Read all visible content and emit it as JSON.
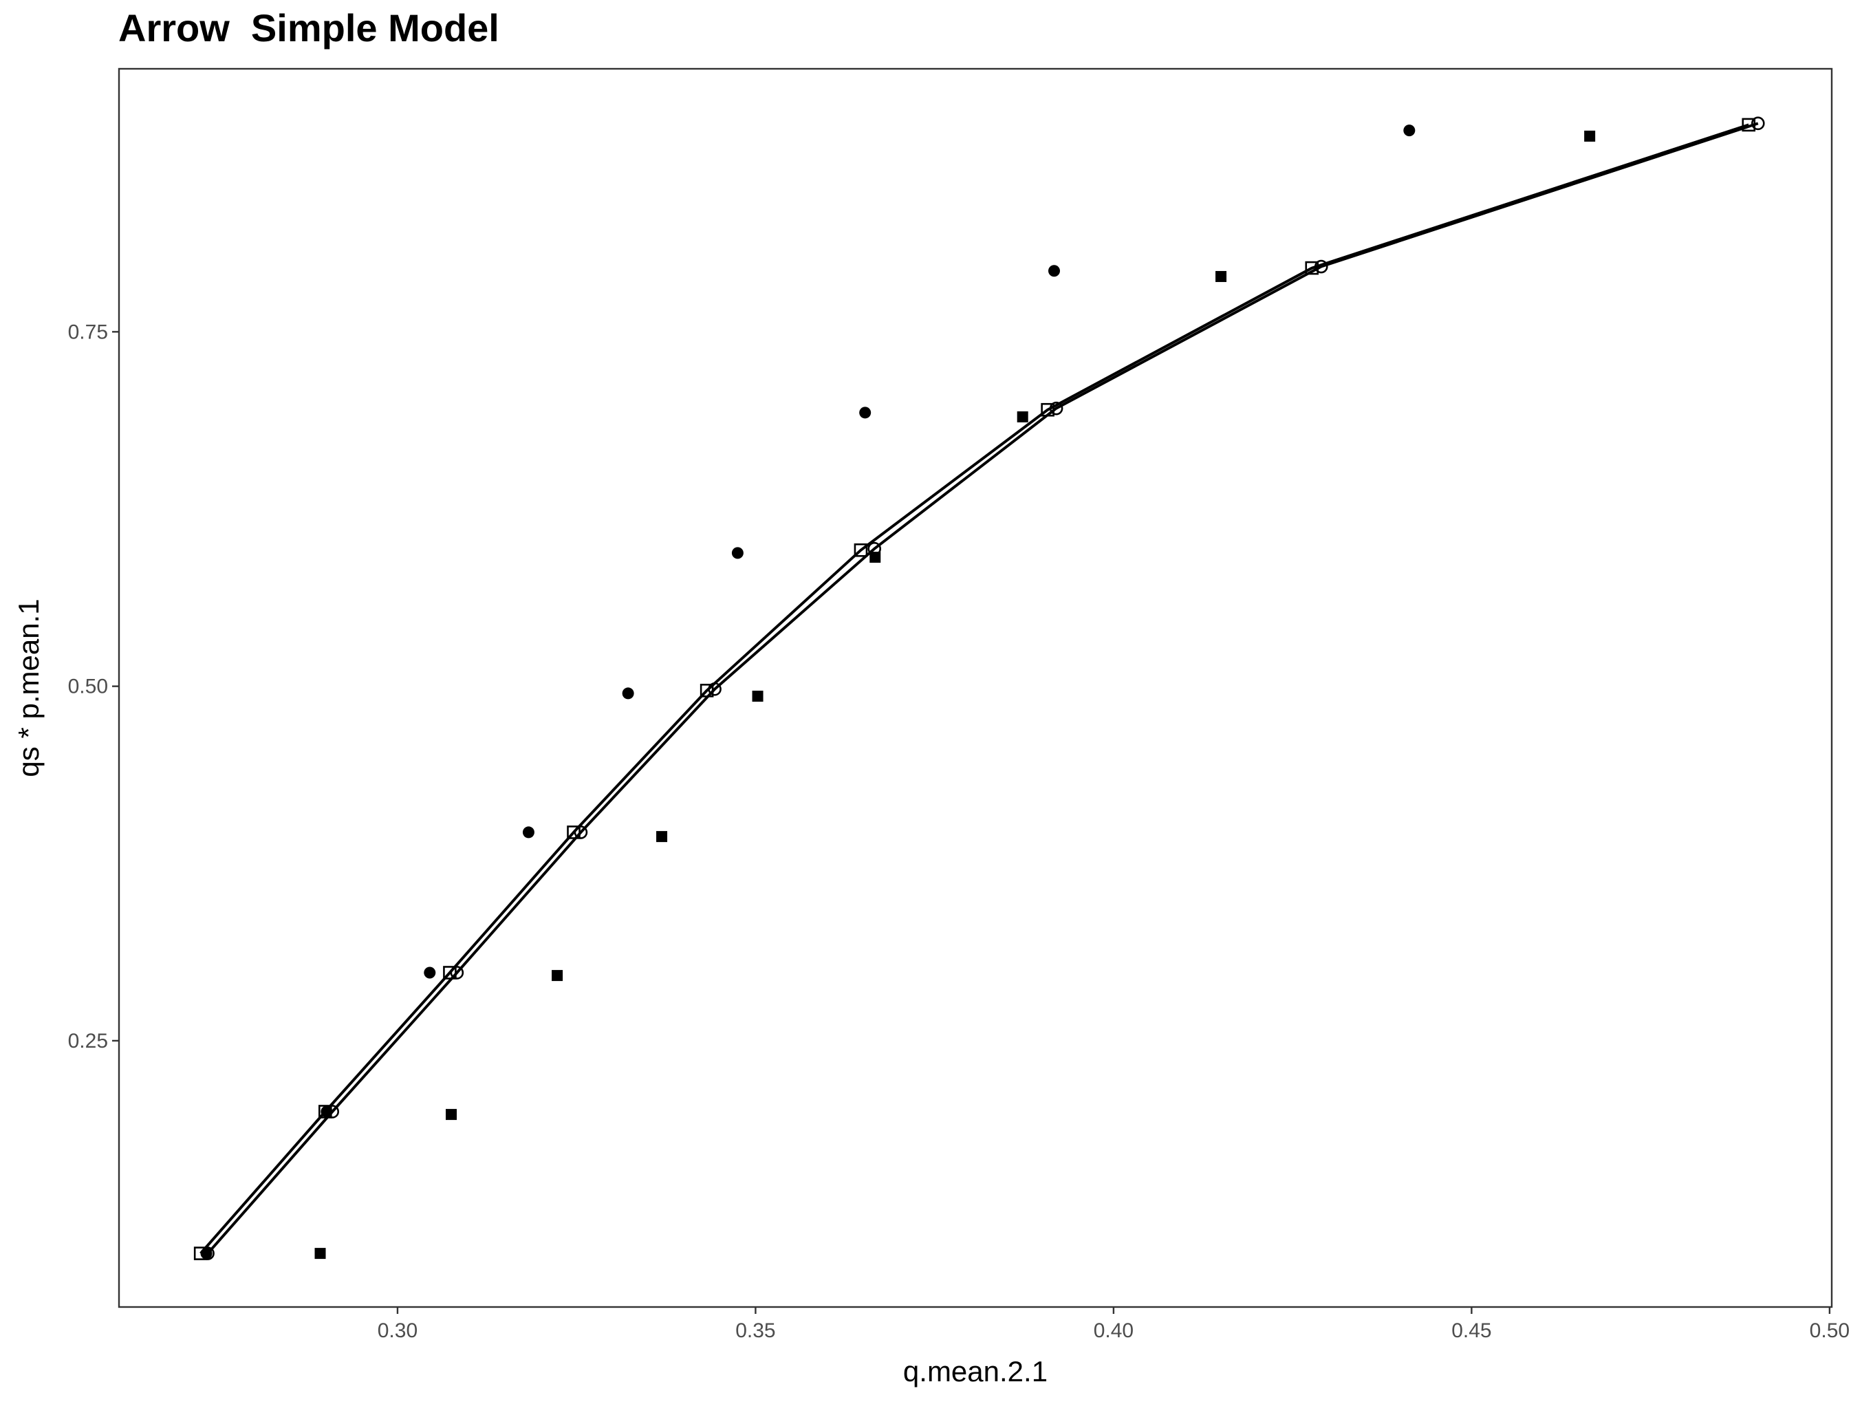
{
  "chart_data": {
    "type": "scatter",
    "title": "Arrow  Simple Model",
    "xlabel": "q.mean.2.1",
    "ylabel": "qs * p.mean.1",
    "xlim": [
      0.2611,
      0.5003
    ],
    "ylim": [
      0.0622,
      0.9355
    ],
    "x_ticks": [
      "0.30",
      "0.35",
      "0.40",
      "0.45",
      "0.50"
    ],
    "y_ticks": [
      "0.25",
      "0.50",
      "0.75"
    ],
    "grid": false,
    "series": [
      {
        "name": "filled circles",
        "mark": "filled-circle",
        "x": [
          0.2733,
          0.2901,
          0.3045,
          0.3183,
          0.3322,
          0.3475,
          0.3653,
          0.3917,
          0.4413
        ],
        "y": [
          0.1,
          0.2,
          0.298,
          0.397,
          0.495,
          0.594,
          0.693,
          0.793,
          0.892
        ]
      },
      {
        "name": "filled squares",
        "mark": "filled-square",
        "x": [
          0.2892,
          0.3075,
          0.3223,
          0.3369,
          0.3503,
          0.3667,
          0.3873,
          0.415,
          0.4665
        ],
        "y": [
          0.1,
          0.198,
          0.296,
          0.394,
          0.493,
          0.591,
          0.69,
          0.789,
          0.888
        ]
      },
      {
        "name": "open squares line",
        "mark": "open-square",
        "line": true,
        "x": [
          0.2725,
          0.2899,
          0.3073,
          0.3246,
          0.3432,
          0.3647,
          0.3908,
          0.4277,
          0.4887
        ],
        "y": [
          0.1,
          0.2,
          0.298,
          0.397,
          0.497,
          0.596,
          0.695,
          0.795,
          0.896
        ]
      },
      {
        "name": "open circles line",
        "mark": "open-circle",
        "line": true,
        "x": [
          0.2735,
          0.2909,
          0.3083,
          0.3256,
          0.3443,
          0.3666,
          0.392,
          0.429,
          0.49
        ],
        "y": [
          0.1,
          0.2,
          0.298,
          0.397,
          0.498,
          0.597,
          0.696,
          0.796,
          0.897
        ]
      }
    ]
  }
}
